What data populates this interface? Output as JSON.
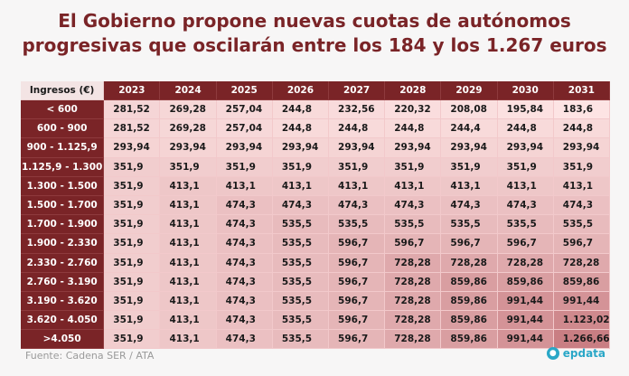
{
  "chart_data": {
    "type": "table",
    "title_lines": [
      "El Gobierno propone nuevas cuotas de autónomos",
      "progresivas que oscilarán entre los 184 y los 1.267 euros"
    ],
    "row_header_label": "Ingresos (€)",
    "columns": [
      "2023",
      "2024",
      "2025",
      "2026",
      "2027",
      "2028",
      "2029",
      "2030",
      "2031"
    ],
    "rows": [
      {
        "label": "< 600",
        "values": [
          "281,52",
          "269,28",
          "257,04",
          "244,8",
          "232,56",
          "220,32",
          "208,08",
          "195,84",
          "183,6"
        ]
      },
      {
        "label": "600 - 900",
        "values": [
          "281,52",
          "269,28",
          "257,04",
          "244,8",
          "244,8",
          "244,8",
          "244,4",
          "244,8",
          "244,8"
        ]
      },
      {
        "label": "900 - 1.125,9",
        "values": [
          "293,94",
          "293,94",
          "293,94",
          "293,94",
          "293,94",
          "293,94",
          "293,94",
          "293,94",
          "293,94"
        ]
      },
      {
        "label": "1.125,9 - 1.300",
        "values": [
          "351,9",
          "351,9",
          "351,9",
          "351,9",
          "351,9",
          "351,9",
          "351,9",
          "351,9",
          "351,9"
        ]
      },
      {
        "label": "1.300 - 1.500",
        "values": [
          "351,9",
          "413,1",
          "413,1",
          "413,1",
          "413,1",
          "413,1",
          "413,1",
          "413,1",
          "413,1"
        ]
      },
      {
        "label": "1.500 - 1.700",
        "values": [
          "351,9",
          "413,1",
          "474,3",
          "474,3",
          "474,3",
          "474,3",
          "474,3",
          "474,3",
          "474,3"
        ]
      },
      {
        "label": "1.700 - 1.900",
        "values": [
          "351,9",
          "413,1",
          "474,3",
          "535,5",
          "535,5",
          "535,5",
          "535,5",
          "535,5",
          "535,5"
        ]
      },
      {
        "label": "1.900 - 2.330",
        "values": [
          "351,9",
          "413,1",
          "474,3",
          "535,5",
          "596,7",
          "596,7",
          "596,7",
          "596,7",
          "596,7"
        ]
      },
      {
        "label": "2.330 - 2.760",
        "values": [
          "351,9",
          "413,1",
          "474,3",
          "535,5",
          "596,7",
          "728,28",
          "728,28",
          "728,28",
          "728,28"
        ]
      },
      {
        "label": "2.760 - 3.190",
        "values": [
          "351,9",
          "413,1",
          "474,3",
          "535,5",
          "596,7",
          "728,28",
          "859,86",
          "859,86",
          "859,86"
        ]
      },
      {
        "label": "3.190 - 3.620",
        "values": [
          "351,9",
          "413,1",
          "474,3",
          "535,5",
          "596,7",
          "728,28",
          "859,86",
          "991,44",
          "991,44"
        ]
      },
      {
        "label": "3.620 - 4.050",
        "values": [
          "351,9",
          "413,1",
          "474,3",
          "535,5",
          "596,7",
          "728,28",
          "859,86",
          "991,44",
          "1.123,02"
        ]
      },
      {
        "label": ">4.050",
        "values": [
          "351,9",
          "413,1",
          "474,3",
          "535,5",
          "596,7",
          "728,28",
          "859,86",
          "991,44",
          "1.266,66"
        ]
      }
    ],
    "color_scale": {
      "low": "#fde4e4",
      "high": "#c97e83"
    }
  },
  "footer": {
    "source": "Fuente: Cadena SER / ATA",
    "brand": "epdata"
  },
  "colors": {
    "header_bg": "#7a2427",
    "title": "#7a2427",
    "brand": "#2aa7c7"
  }
}
